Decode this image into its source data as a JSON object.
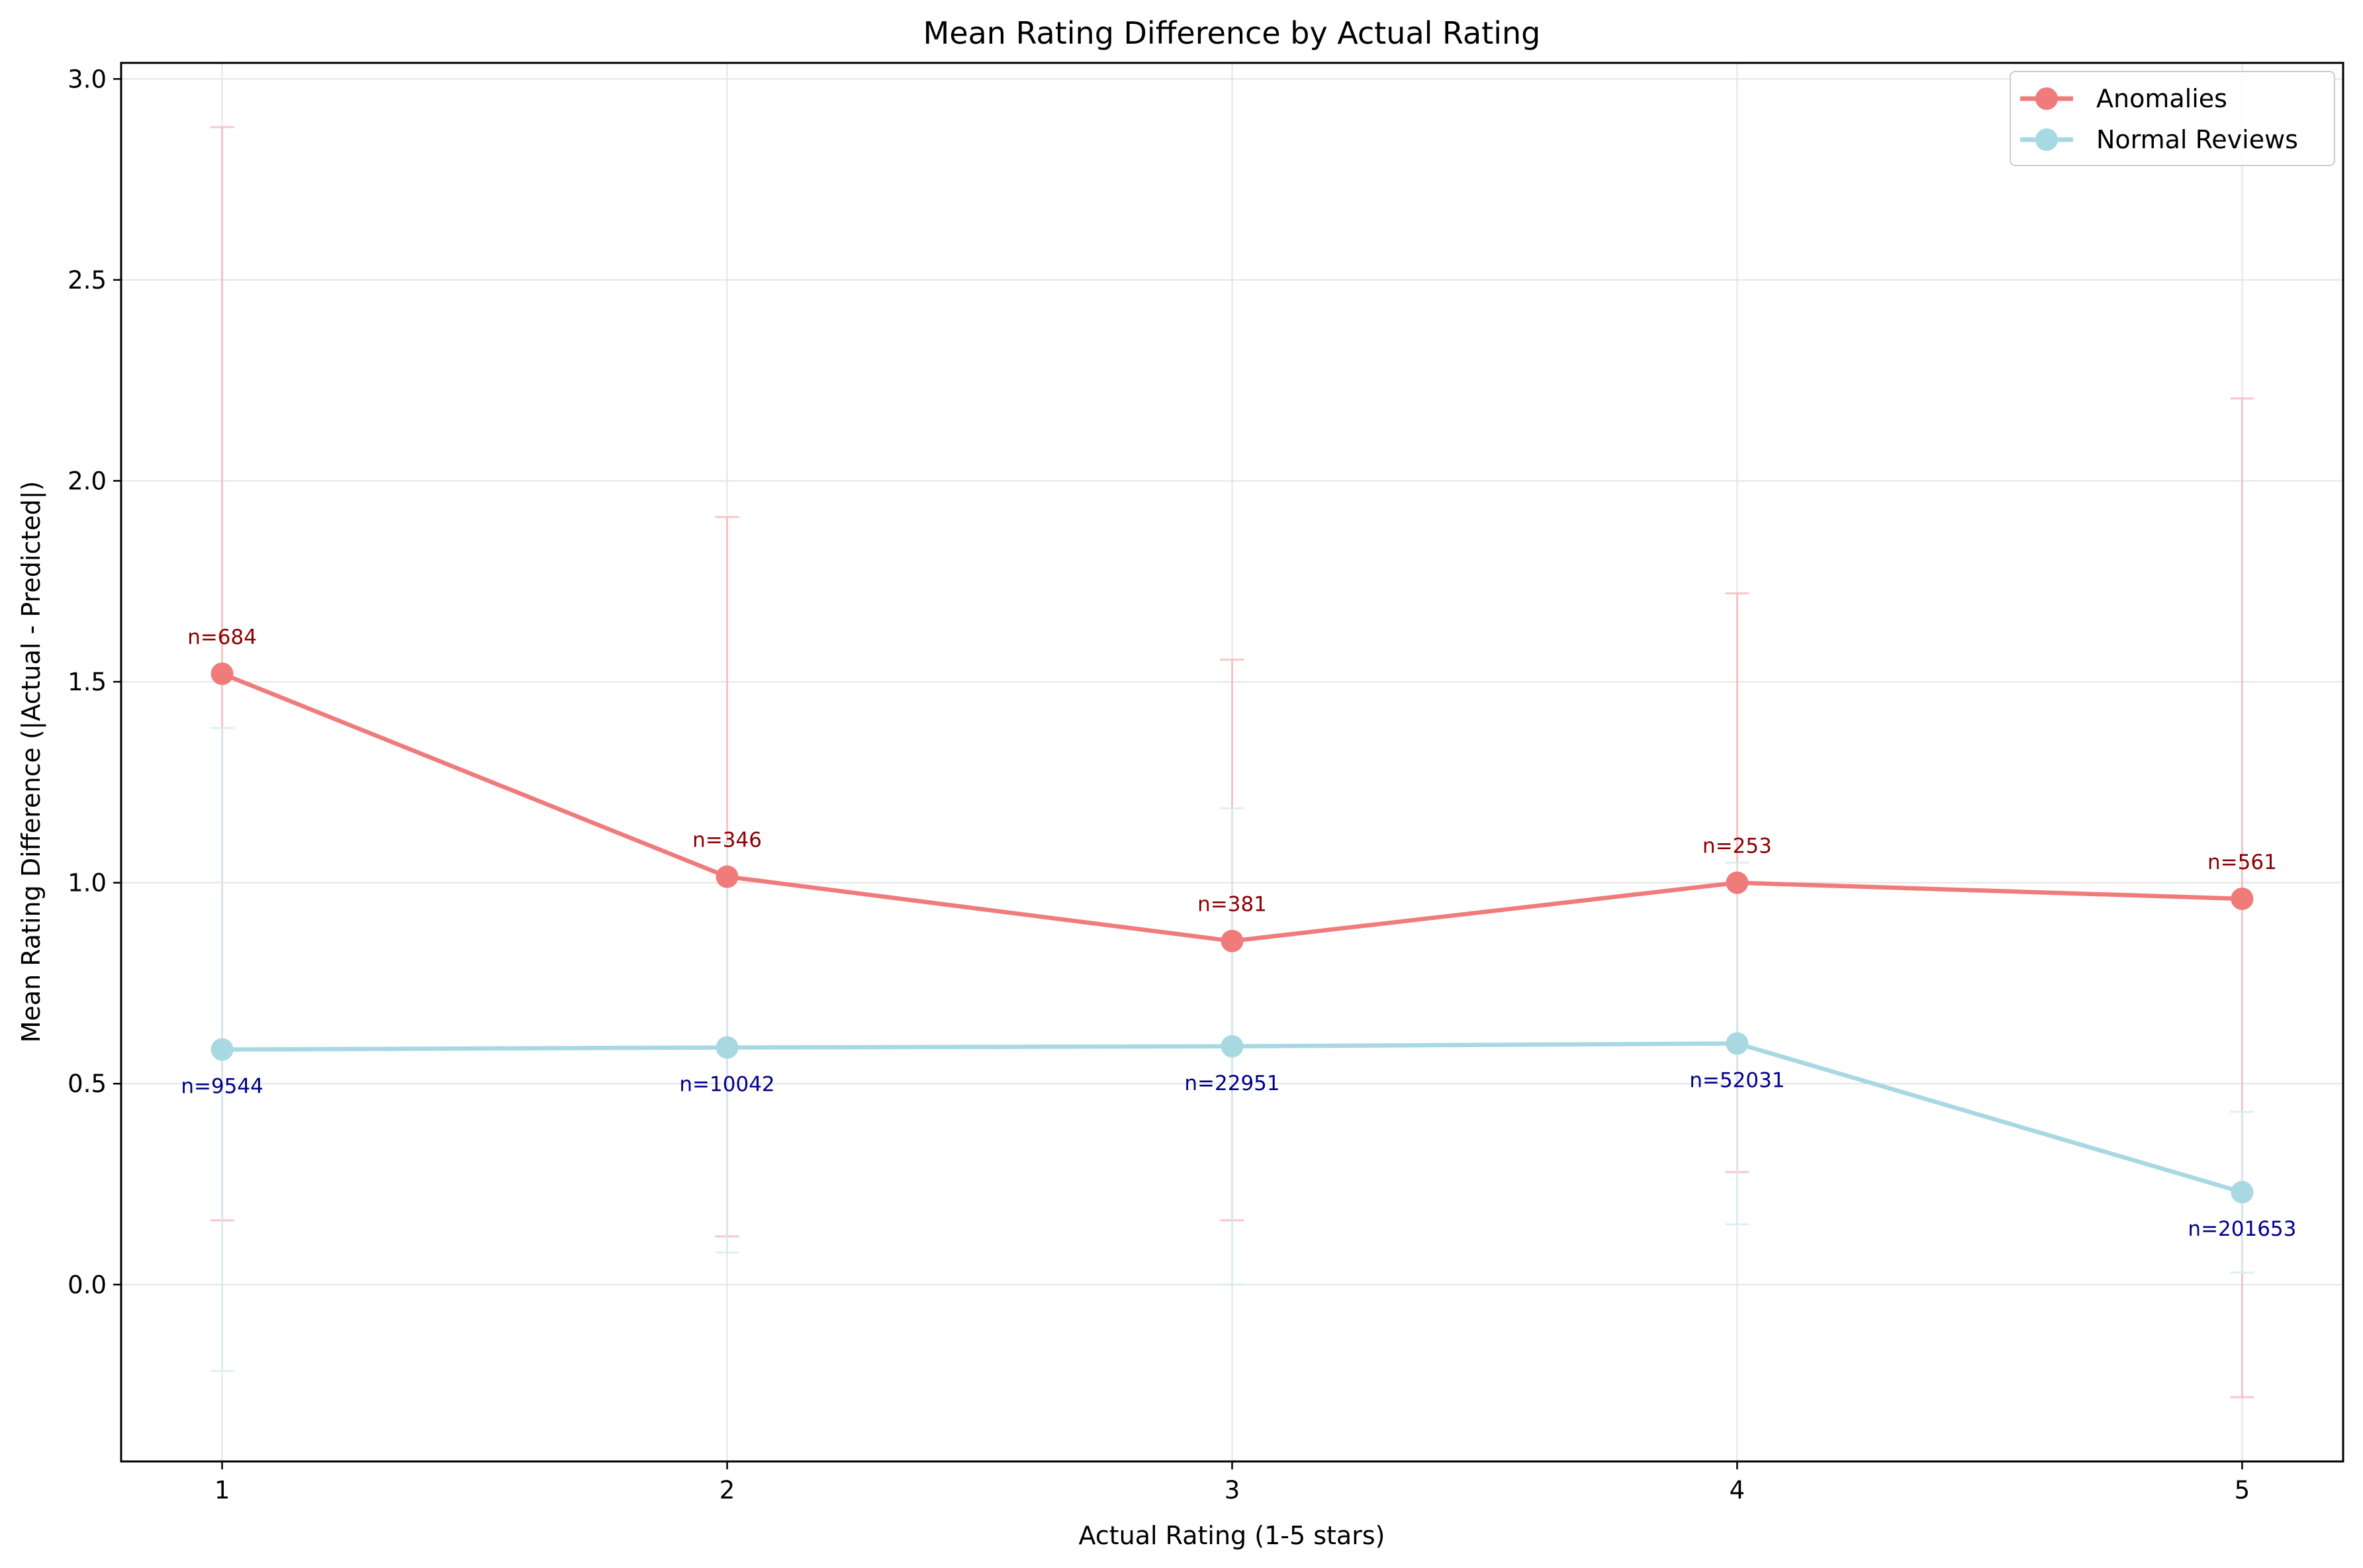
{
  "chart_data": {
    "type": "line",
    "title": "Mean Rating Difference by Actual Rating",
    "xlabel": "Actual Rating (1-5 stars)",
    "ylabel": "Mean Rating Difference (|Actual - Predicted|)",
    "x": [
      1,
      2,
      3,
      4,
      5
    ],
    "xlim": [
      0.8,
      5.2
    ],
    "ylim": [
      -0.44,
      3.04
    ],
    "xticks": [
      "1",
      "2",
      "3",
      "4",
      "5"
    ],
    "yticks": [
      "0.0",
      "0.5",
      "1.0",
      "1.5",
      "2.0",
      "2.5",
      "3.0"
    ],
    "grid": true,
    "legend_position": "top-right",
    "series": [
      {
        "name": "Anomalies",
        "color": "#F07B7B",
        "error_color": "#F9B8BC",
        "label_color": "#8B0000",
        "values": [
          1.52,
          1.015,
          0.855,
          1.0,
          0.96
        ],
        "error_low": [
          0.16,
          0.12,
          0.16,
          0.28,
          -0.28
        ],
        "error_high": [
          2.88,
          1.91,
          1.555,
          1.72,
          2.205
        ],
        "counts": [
          "n=684",
          "n=346",
          "n=381",
          "n=253",
          "n=561"
        ]
      },
      {
        "name": "Normal Reviews",
        "color": "#A8D8E2",
        "error_color": "#D4ECF2",
        "label_color": "#00008B",
        "values": [
          0.585,
          0.59,
          0.593,
          0.6,
          0.23
        ],
        "error_low": [
          -0.215,
          0.08,
          0.0,
          0.15,
          0.03
        ],
        "error_high": [
          1.385,
          1.1,
          1.185,
          1.05,
          0.43
        ],
        "counts": [
          "n=9544",
          "n=10042",
          "n=22951",
          "n=52031",
          "n=201653"
        ]
      }
    ]
  }
}
